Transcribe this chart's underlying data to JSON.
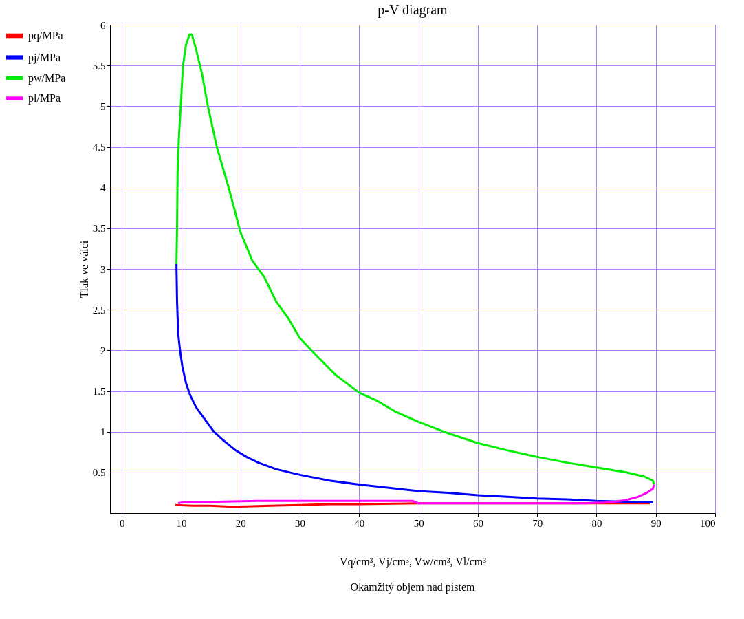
{
  "chart_data": {
    "type": "line",
    "title": "p-V diagram",
    "xlabel": "Vq/cm³, Vj/cm³, Vw/cm³, Vl/cm³",
    "ylabel": "Tlak ve válci",
    "annotations": [
      "Okamžitý objem nad pístem"
    ],
    "xlim": [
      -2,
      100
    ],
    "xticks": [
      0,
      10,
      20,
      30,
      40,
      50,
      60,
      70,
      80,
      90,
      100
    ],
    "ylim": [
      0,
      6
    ],
    "yticks": [
      0.5,
      1,
      1.5,
      2,
      2.5,
      3,
      3.5,
      4,
      4.5,
      5,
      5.5,
      6
    ],
    "grid": true,
    "legend": "left",
    "marker": "none",
    "line_style": "solid",
    "series": [
      {
        "name": "pq/MPa",
        "color": "#ff0000",
        "x": [
          9,
          12,
          15,
          18,
          20,
          25,
          30,
          35,
          40,
          50,
          60,
          70,
          80,
          89
        ],
        "values": [
          0.1,
          0.09,
          0.09,
          0.08,
          0.08,
          0.09,
          0.1,
          0.11,
          0.11,
          0.12,
          0.12,
          0.12,
          0.12,
          0.12
        ]
      },
      {
        "name": "pj/MPa",
        "color": "#0000ff",
        "x": [
          9.2,
          9.3,
          9.5,
          9.8,
          10.2,
          10.8,
          11.5,
          12.5,
          14,
          15.5,
          17,
          19,
          21,
          23,
          26,
          30,
          35,
          40,
          45,
          50,
          55,
          60,
          65,
          70,
          75,
          80,
          85,
          89.5
        ],
        "values": [
          3.06,
          2.6,
          2.2,
          2.0,
          1.8,
          1.6,
          1.45,
          1.3,
          1.15,
          1.0,
          0.9,
          0.78,
          0.69,
          0.62,
          0.54,
          0.47,
          0.4,
          0.35,
          0.31,
          0.27,
          0.25,
          0.22,
          0.2,
          0.18,
          0.17,
          0.15,
          0.14,
          0.13
        ]
      },
      {
        "name": "pw/MPa",
        "color": "#00ee00",
        "x": [
          9.2,
          9.3,
          9.4,
          9.6,
          10,
          10.3,
          10.8,
          11.4,
          11.8,
          12.5,
          13.5,
          14.5,
          16,
          18,
          20,
          22,
          24,
          26,
          28,
          30,
          33,
          36,
          40,
          43,
          46,
          50,
          55,
          60,
          65,
          70,
          75,
          80,
          85,
          88,
          89.5,
          89.7
        ],
        "values": [
          3.06,
          3.5,
          4.2,
          4.6,
          5.1,
          5.5,
          5.75,
          5.88,
          5.88,
          5.7,
          5.4,
          5.0,
          4.5,
          4.0,
          3.45,
          3.1,
          2.9,
          2.6,
          2.4,
          2.15,
          1.92,
          1.7,
          1.48,
          1.38,
          1.25,
          1.12,
          0.98,
          0.86,
          0.77,
          0.69,
          0.62,
          0.56,
          0.5,
          0.45,
          0.4,
          0.35
        ]
      },
      {
        "name": "pl/MPa",
        "color": "#ff00ff",
        "x": [
          89.7,
          89.5,
          88.5,
          87,
          85,
          82,
          78,
          70,
          60,
          50,
          49,
          40,
          30,
          23,
          16,
          10,
          9.5
        ],
        "values": [
          0.35,
          0.3,
          0.25,
          0.2,
          0.16,
          0.13,
          0.12,
          0.12,
          0.12,
          0.12,
          0.15,
          0.15,
          0.15,
          0.15,
          0.14,
          0.13,
          0.12
        ]
      }
    ]
  }
}
